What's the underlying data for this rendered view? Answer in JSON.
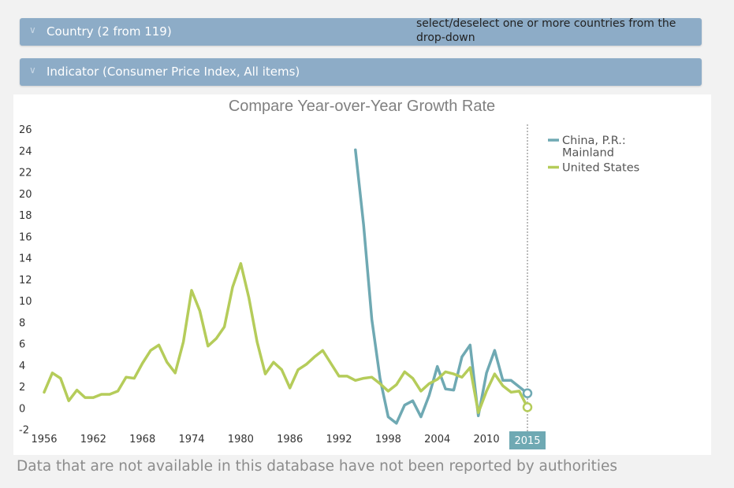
{
  "controls": {
    "country_label": "Country (2 from 119)",
    "indicator_label": "Indicator (Consumer Price Index, All items)",
    "hint": "select/deselect one or more countries from the drop-down",
    "chevron_icon": "chevron-down-icon"
  },
  "footnote": "Data that are not available in this database have not been reported by authorities",
  "colors": {
    "china": "#6fa9b3",
    "us": "#b5cc5a",
    "badge": "#6fa9b3"
  },
  "chart_data": {
    "type": "line",
    "title": "Compare Year-over-Year Growth Rate",
    "xlabel": "",
    "ylabel": "",
    "xlim": [
      1956,
      2015
    ],
    "ylim": [
      -2,
      26
    ],
    "xticks": [
      "1956",
      "1962",
      "1968",
      "1974",
      "1980",
      "1986",
      "1992",
      "1998",
      "2004",
      "2010"
    ],
    "yticks": [
      "-2",
      "0",
      "2",
      "4",
      "6",
      "8",
      "10",
      "12",
      "14",
      "16",
      "18",
      "20",
      "22",
      "24",
      "26"
    ],
    "highlight_year": "2015",
    "legend_position": "right",
    "series": [
      {
        "name": "China, P.R.: Mainland",
        "legend_lines": [
          "China, P.R.:",
          "Mainland"
        ],
        "color": "#6fa9b3",
        "x": [
          1994,
          1995,
          1996,
          1997,
          1998,
          1999,
          2000,
          2001,
          2002,
          2003,
          2004,
          2005,
          2006,
          2007,
          2008,
          2009,
          2010,
          2011,
          2012,
          2013,
          2014,
          2015
        ],
        "values": [
          24.1,
          17.1,
          8.3,
          2.8,
          -0.8,
          -1.4,
          0.3,
          0.7,
          -0.8,
          1.2,
          3.9,
          1.8,
          1.7,
          4.8,
          5.9,
          -0.7,
          3.3,
          5.4,
          2.6,
          2.6,
          2.0,
          1.4
        ]
      },
      {
        "name": "United States",
        "legend_lines": [
          "United States"
        ],
        "color": "#b5cc5a",
        "x": [
          1956,
          1957,
          1958,
          1959,
          1960,
          1961,
          1962,
          1963,
          1964,
          1965,
          1966,
          1967,
          1968,
          1969,
          1970,
          1971,
          1972,
          1973,
          1974,
          1975,
          1976,
          1977,
          1978,
          1979,
          1980,
          1981,
          1982,
          1983,
          1984,
          1985,
          1986,
          1987,
          1988,
          1989,
          1990,
          1991,
          1992,
          1993,
          1994,
          1995,
          1996,
          1997,
          1998,
          1999,
          2000,
          2001,
          2002,
          2003,
          2004,
          2005,
          2006,
          2007,
          2008,
          2009,
          2010,
          2011,
          2012,
          2013,
          2014,
          2015
        ],
        "values": [
          1.5,
          3.3,
          2.8,
          0.7,
          1.7,
          1.0,
          1.0,
          1.3,
          1.3,
          1.6,
          2.9,
          2.8,
          4.2,
          5.4,
          5.9,
          4.3,
          3.3,
          6.2,
          11.0,
          9.1,
          5.8,
          6.5,
          7.6,
          11.3,
          13.5,
          10.3,
          6.2,
          3.2,
          4.3,
          3.6,
          1.9,
          3.6,
          4.1,
          4.8,
          5.4,
          4.2,
          3.0,
          3.0,
          2.6,
          2.8,
          2.9,
          2.3,
          1.6,
          2.2,
          3.4,
          2.8,
          1.6,
          2.3,
          2.7,
          3.4,
          3.2,
          2.9,
          3.8,
          -0.4,
          1.6,
          3.2,
          2.1,
          1.5,
          1.6,
          0.1
        ]
      }
    ]
  }
}
